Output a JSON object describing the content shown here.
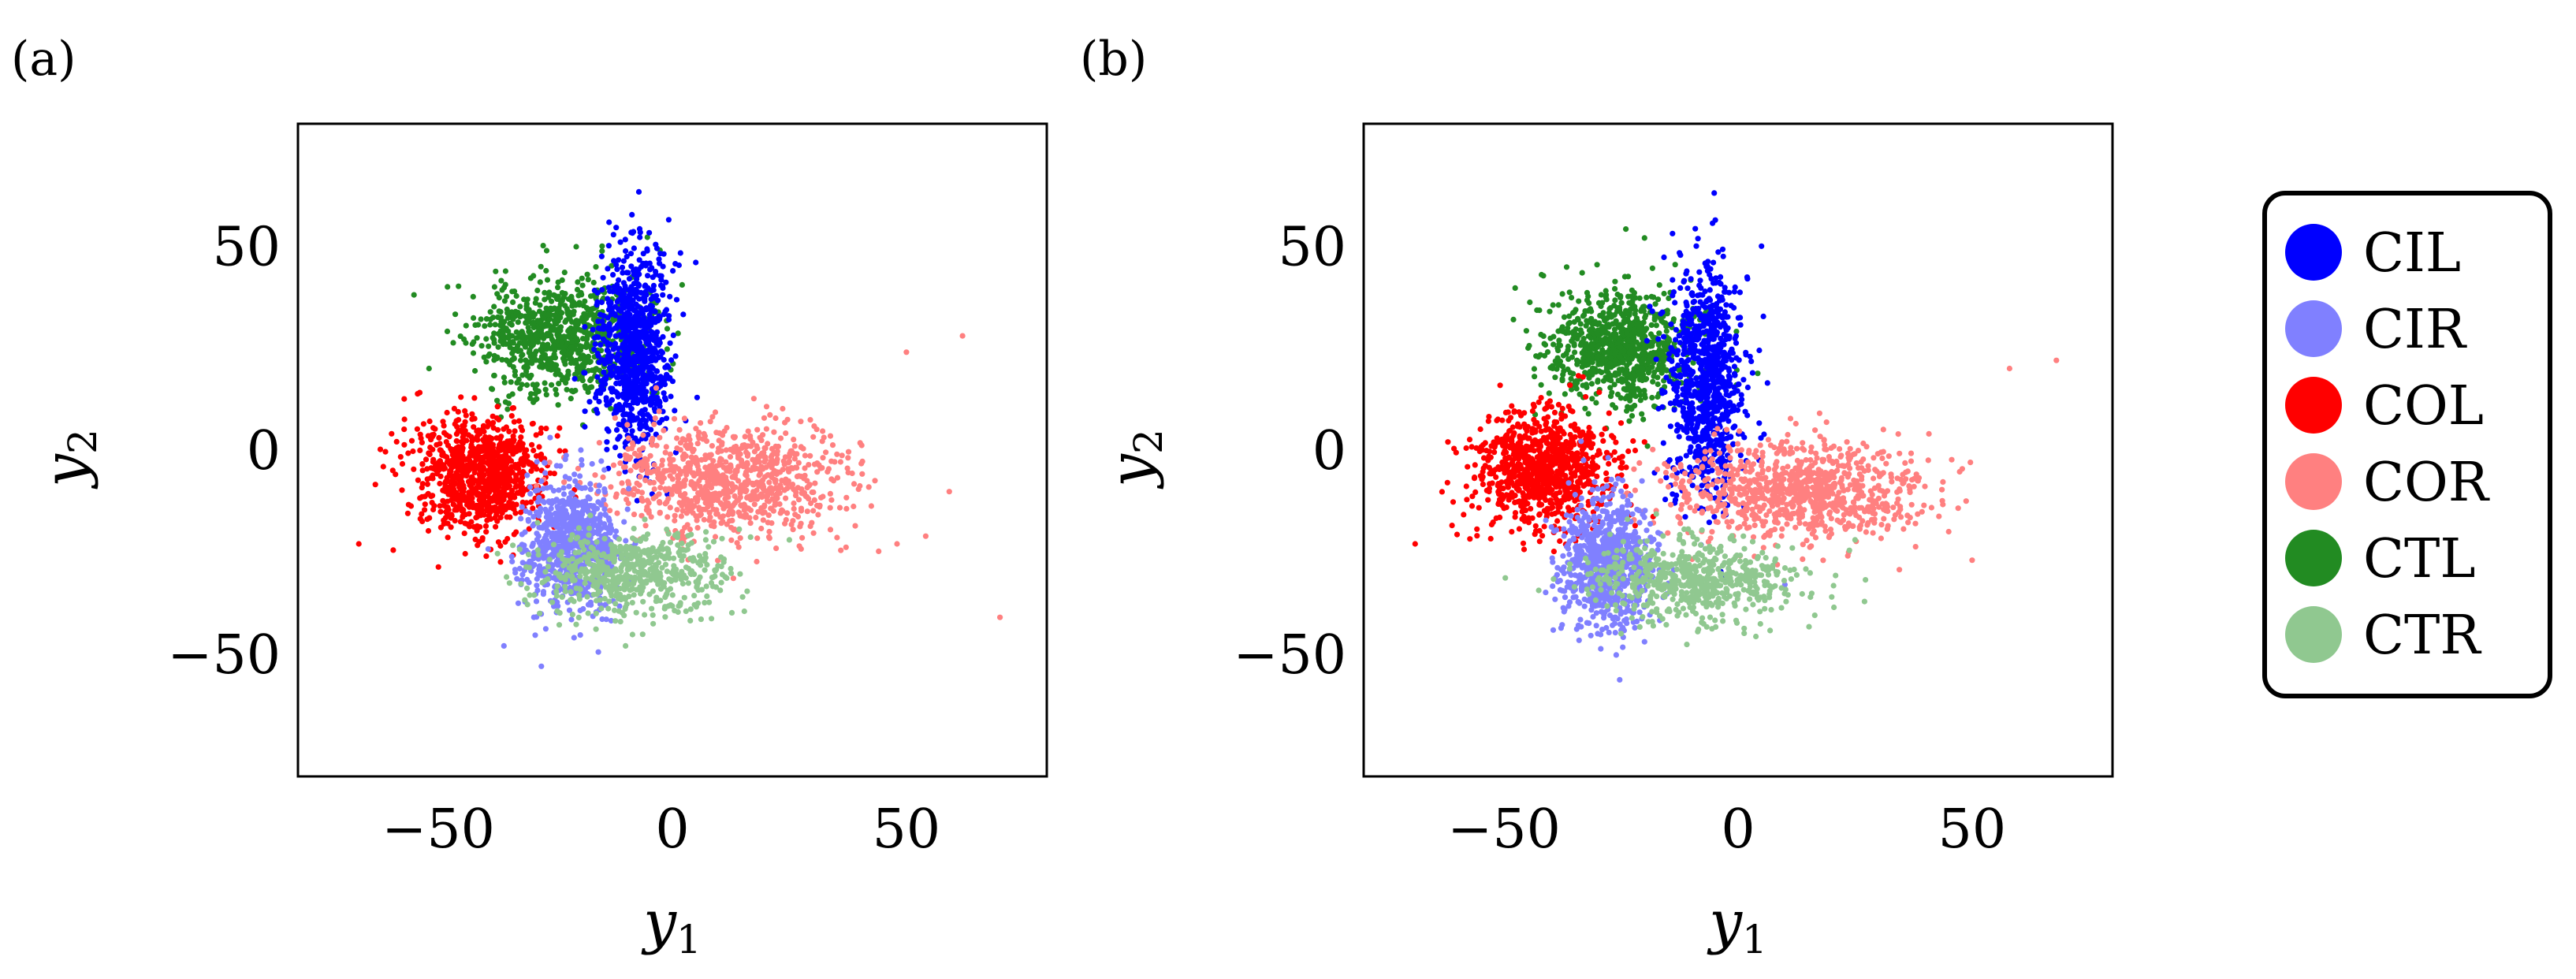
{
  "chart_data": [
    {
      "type": "scatter",
      "panel_label": "(a)",
      "xlabel": "y",
      "xlabel_sub": "1",
      "ylabel": "y",
      "ylabel_sub": "2",
      "xlim": [
        -80,
        80
      ],
      "ylim": [
        -80,
        80
      ],
      "xticks": [
        -50,
        0,
        50
      ],
      "yticks": [
        50,
        0,
        -50
      ],
      "xtick_labels": [
        "−50",
        "0",
        "50"
      ],
      "ytick_labels": [
        "50",
        "0",
        "−50"
      ],
      "grid": false,
      "clusters": [
        {
          "name": "CTL",
          "color": "#228B22",
          "center": [
            -24,
            28
          ],
          "spread": [
            9,
            7
          ],
          "count": 850,
          "seed": 11,
          "tail": [
            [
              -52,
              20
            ],
            [
              -38,
              40
            ],
            [
              -15,
              50
            ]
          ]
        },
        {
          "name": "CIL",
          "color": "#0000FF",
          "center": [
            -8,
            25
          ],
          "spread": [
            3.5,
            12
          ],
          "count": 900,
          "seed": 12,
          "tail": [
            [
              -14,
              2
            ],
            [
              5,
              46
            ],
            [
              -2,
              45
            ]
          ]
        },
        {
          "name": "COL",
          "color": "#FF0000",
          "center": [
            -41,
            -6
          ],
          "spread": [
            7,
            7
          ],
          "count": 900,
          "seed": 13,
          "tail": [
            [
              -67,
              -23
            ],
            [
              -60,
              4
            ],
            [
              -48,
              -18
            ]
          ]
        },
        {
          "name": "COR",
          "color": "#FF8080",
          "center": [
            12,
            -8
          ],
          "spread": [
            13,
            7
          ],
          "count": 900,
          "seed": 14,
          "tail": [
            [
              50,
              24
            ],
            [
              62,
              28
            ],
            [
              70,
              -41
            ],
            [
              48,
              -23
            ]
          ]
        },
        {
          "name": "CIR",
          "color": "#8080FF",
          "center": [
            -22,
            -23
          ],
          "spread": [
            5,
            8
          ],
          "count": 800,
          "seed": 15,
          "tail": [
            [
              -36,
              -48
            ],
            [
              -28,
              -53
            ],
            [
              -21,
              -46
            ]
          ]
        },
        {
          "name": "CTR",
          "color": "#90C890",
          "center": [
            -9,
            -30
          ],
          "spread": [
            10,
            5
          ],
          "count": 600,
          "seed": 16,
          "tail": [
            [
              -10,
              -48
            ],
            [
              25,
              -22
            ],
            [
              15,
              -36
            ]
          ]
        }
      ]
    },
    {
      "type": "scatter",
      "panel_label": "(b)",
      "xlabel": "y",
      "xlabel_sub": "1",
      "ylabel": "y",
      "ylabel_sub": "2",
      "xlim": [
        -80,
        80
      ],
      "ylim": [
        -80,
        80
      ],
      "xticks": [
        -50,
        0,
        50
      ],
      "yticks": [
        50,
        0,
        -50
      ],
      "xtick_labels": [
        "−50",
        "0",
        "50"
      ],
      "ytick_labels": [
        "50",
        "0",
        "−50"
      ],
      "grid": false,
      "clusters": [
        {
          "name": "CTL",
          "color": "#228B22",
          "center": [
            -25,
            25
          ],
          "spread": [
            8,
            7
          ],
          "count": 850,
          "seed": 21,
          "tail": [
            [
              -48,
              32
            ],
            [
              -42,
              43
            ],
            [
              -20,
              52
            ]
          ]
        },
        {
          "name": "CIL",
          "color": "#0000FF",
          "center": [
            -7,
            17
          ],
          "spread": [
            4,
            14
          ],
          "count": 900,
          "seed": 22,
          "tail": [
            [
              -15,
              -3
            ],
            [
              5,
              50
            ],
            [
              2,
              42
            ]
          ]
        },
        {
          "name": "COL",
          "color": "#FF0000",
          "center": [
            -42,
            -5
          ],
          "spread": [
            7,
            7
          ],
          "count": 900,
          "seed": 23,
          "tail": [
            [
              -69,
              -23
            ],
            [
              -62,
              2
            ],
            [
              -20,
              2
            ]
          ]
        },
        {
          "name": "COR",
          "color": "#FF8080",
          "center": [
            12,
            -10
          ],
          "spread": [
            13,
            6
          ],
          "count": 900,
          "seed": 24,
          "tail": [
            [
              58,
              20
            ],
            [
              68,
              22
            ],
            [
              50,
              -27
            ],
            [
              45,
              -20
            ]
          ]
        },
        {
          "name": "CIR",
          "color": "#8080FF",
          "center": [
            -28,
            -28
          ],
          "spread": [
            5,
            8
          ],
          "count": 800,
          "seed": 25,
          "tail": [
            [
              -30,
              -45
            ],
            [
              -20,
              -47
            ],
            [
              10,
              -33
            ]
          ]
        },
        {
          "name": "CTR",
          "color": "#90C890",
          "center": [
            -10,
            -32
          ],
          "spread": [
            11,
            5
          ],
          "count": 600,
          "seed": 26,
          "tail": [
            [
              25,
              -22
            ],
            [
              20,
              -36
            ],
            [
              -25,
              -45
            ]
          ]
        }
      ]
    }
  ],
  "legend": {
    "entries": [
      {
        "label": "CIL",
        "color": "#0000FF"
      },
      {
        "label": "CIR",
        "color": "#8080FF"
      },
      {
        "label": "COL",
        "color": "#FF0000"
      },
      {
        "label": "COR",
        "color": "#FF8080"
      },
      {
        "label": "CTL",
        "color": "#228B22"
      },
      {
        "label": "CTR",
        "color": "#90C890"
      }
    ]
  }
}
